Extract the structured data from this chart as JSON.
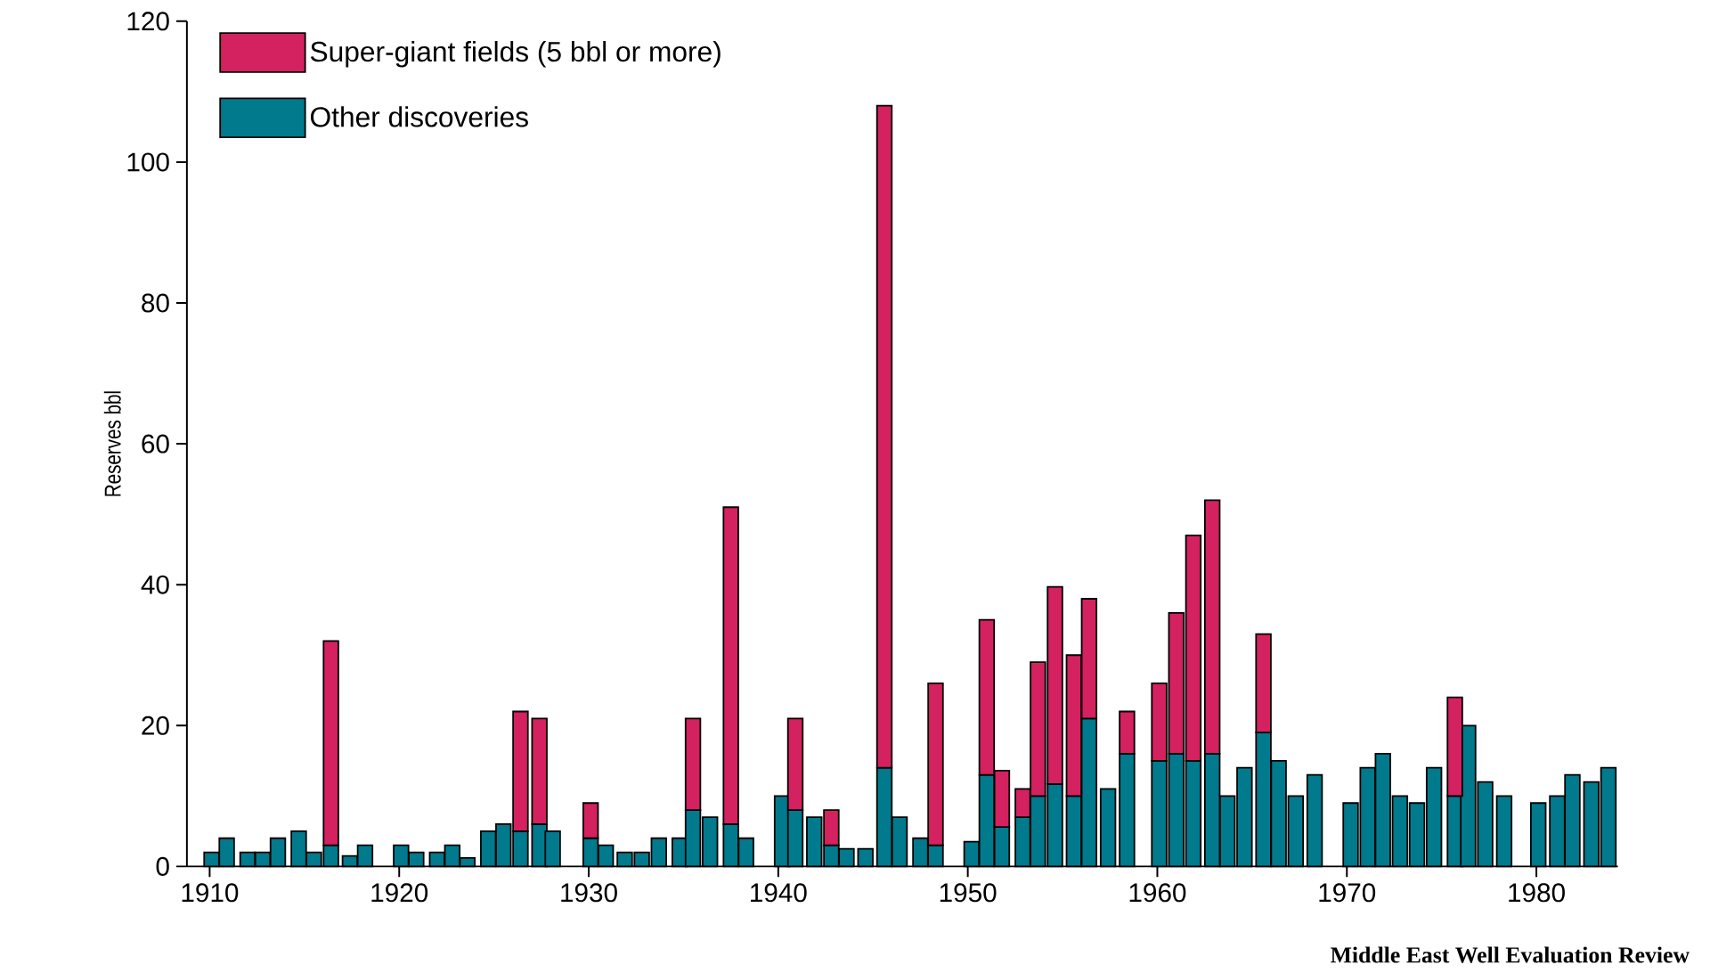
{
  "chart_data": {
    "type": "bar",
    "stacked": true,
    "ylabel": "Reserves bbl",
    "x": [
      1910.1,
      1910.9,
      1912.0,
      1912.8,
      1913.6,
      1914.7,
      1915.5,
      1916.4,
      1917.4,
      1918.2,
      1920.1,
      1920.9,
      1922.0,
      1922.8,
      1923.6,
      1924.7,
      1925.5,
      1926.4,
      1927.4,
      1928.1,
      1930.1,
      1930.9,
      1931.9,
      1932.8,
      1933.7,
      1934.8,
      1935.5,
      1936.4,
      1937.5,
      1938.3,
      1940.2,
      1940.9,
      1941.9,
      1942.8,
      1943.6,
      1944.6,
      1945.6,
      1946.4,
      1947.5,
      1948.3,
      1950.2,
      1951.0,
      1951.8,
      1952.9,
      1953.7,
      1954.6,
      1955.6,
      1956.4,
      1957.4,
      1958.4,
      1960.1,
      1961.0,
      1961.9,
      1962.9,
      1963.7,
      1964.6,
      1965.6,
      1966.4,
      1967.3,
      1968.3,
      1970.2,
      1971.1,
      1971.9,
      1972.8,
      1973.7,
      1974.6,
      1975.7,
      1976.4,
      1977.3,
      1978.3,
      1980.1,
      1981.1,
      1981.9,
      1982.9,
      1983.8
    ],
    "series": [
      {
        "name": "Other discoveries",
        "color": "#007a8c",
        "values": [
          2,
          4,
          2,
          2,
          4,
          5,
          2,
          3,
          1.5,
          3,
          3,
          2,
          2,
          3,
          1.2,
          5,
          6,
          5,
          6,
          5,
          4,
          3,
          2,
          2,
          4,
          4,
          8,
          7,
          6,
          4,
          10,
          8,
          7,
          3,
          2.5,
          2.5,
          14,
          7,
          4,
          3,
          3.5,
          13,
          5.6,
          7,
          10,
          11.7,
          10,
          21,
          11,
          16,
          15,
          16,
          15,
          16,
          10,
          14,
          19,
          15,
          10,
          13,
          9,
          14,
          16,
          10,
          9,
          14,
          10,
          20,
          12,
          10,
          9,
          10,
          13,
          12,
          14
        ]
      },
      {
        "name": "Super-giant fields (5  bbl or more)",
        "color": "#d4215f",
        "values": [
          null,
          null,
          null,
          null,
          null,
          null,
          null,
          29,
          null,
          null,
          null,
          null,
          null,
          null,
          null,
          null,
          null,
          17,
          15,
          null,
          5,
          null,
          null,
          null,
          null,
          null,
          13,
          null,
          45,
          null,
          null,
          13,
          null,
          5,
          null,
          null,
          94,
          null,
          null,
          23,
          null,
          22,
          8,
          4,
          19,
          28,
          20,
          17,
          null,
          6,
          11,
          20,
          32,
          36,
          null,
          null,
          14,
          null,
          null,
          null,
          null,
          null,
          null,
          null,
          null,
          null,
          14,
          null,
          null,
          null,
          null,
          null,
          null,
          null,
          null
        ]
      }
    ],
    "xlim": [
      1908.8,
      1984.3
    ],
    "xticks": [
      1910,
      1920,
      1930,
      1940,
      1950,
      1960,
      1970,
      1980
    ],
    "ylim": [
      0,
      120
    ],
    "yticks": [
      0,
      20,
      40,
      60,
      80,
      100,
      120
    ],
    "legend": "top left",
    "grid": false,
    "annotations": [
      "Middle East Well Evaluation Review"
    ]
  }
}
